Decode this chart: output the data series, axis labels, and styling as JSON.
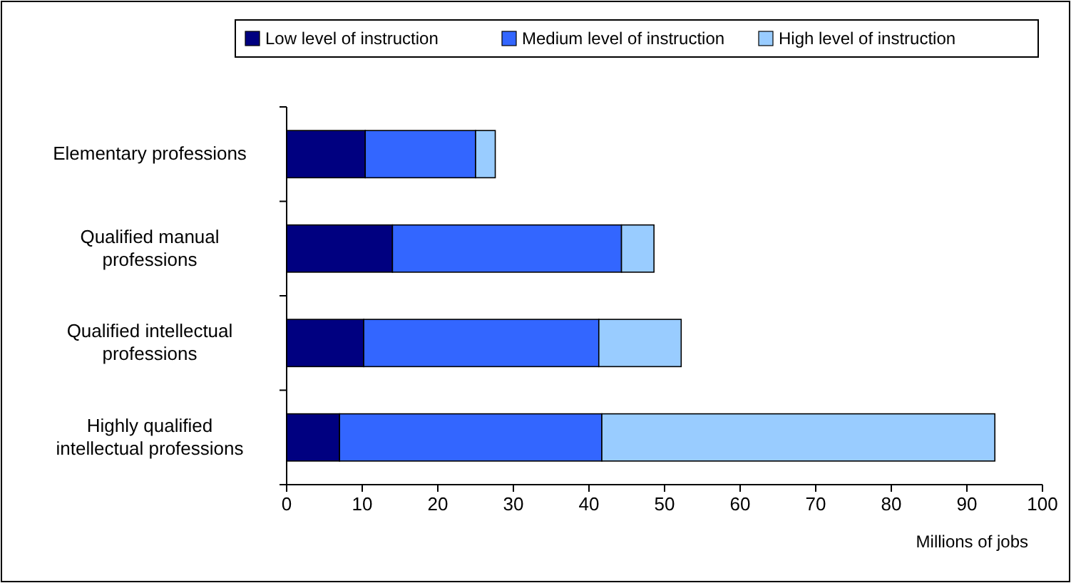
{
  "chart_data": {
    "type": "bar",
    "orientation": "horizontal",
    "stacked": true,
    "xlabel": "Millions of jobs",
    "categories": [
      "Elementary professions",
      "Qualified manual professions",
      "Qualified intellectual professions",
      "Highly qualified intellectual professions"
    ],
    "series": [
      {
        "name": "Low level of instruction",
        "color": "#000080",
        "values": [
          10.4,
          14.0,
          10.2,
          7.0
        ]
      },
      {
        "name": "Medium level of instruction",
        "color": "#3366ff",
        "values": [
          14.6,
          30.3,
          31.1,
          34.7
        ]
      },
      {
        "name": "High level of instruction",
        "color": "#99ccff",
        "values": [
          2.6,
          4.3,
          10.9,
          52.0
        ]
      }
    ],
    "xlim": [
      0,
      100
    ],
    "xticks": [
      0,
      10,
      20,
      30,
      40,
      50,
      60,
      70,
      80,
      90,
      100
    ],
    "grid": false,
    "legend": "top"
  }
}
